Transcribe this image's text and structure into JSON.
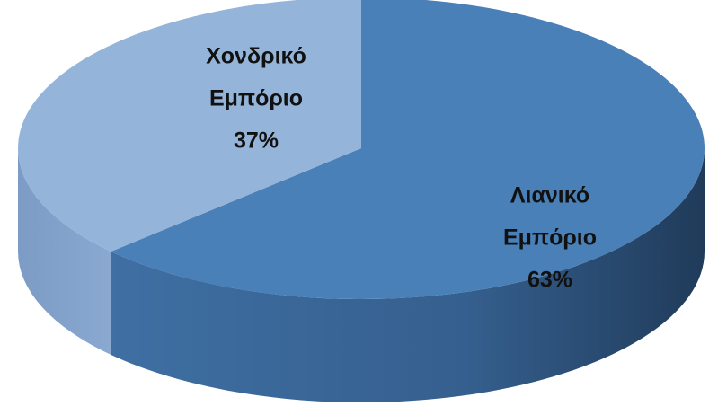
{
  "chart_data": {
    "type": "pie",
    "categories": [
      "Λιανικό Εμπόριο",
      "Χονδρικό Εμπόριο"
    ],
    "values": [
      63,
      37
    ],
    "value_labels": [
      "63%",
      "37%"
    ],
    "colors": [
      "#4a80b8",
      "#95b4da"
    ]
  }
}
